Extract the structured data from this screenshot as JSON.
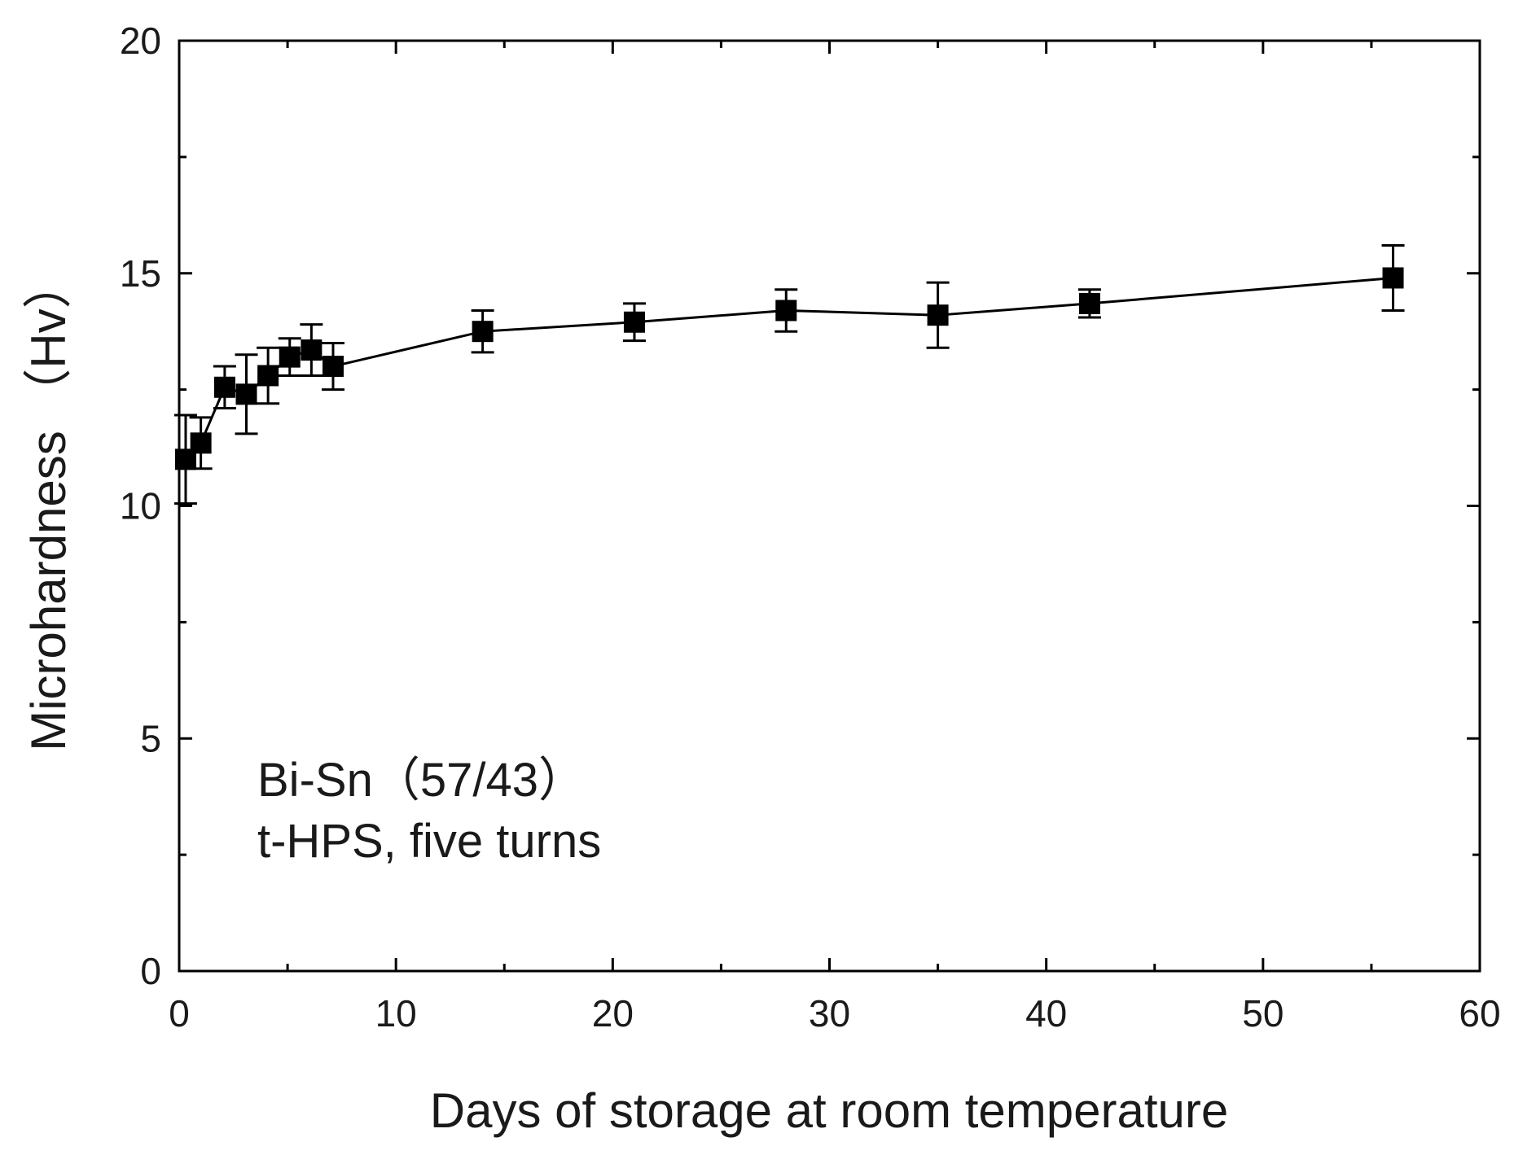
{
  "chart_data": {
    "type": "scatter",
    "xlabel": "Days of storage at room temperature",
    "ylabel": "Microhardness （Hv）",
    "xlim": [
      0,
      60
    ],
    "ylim": [
      0,
      20
    ],
    "x_ticks": [
      0,
      10,
      20,
      30,
      40,
      50,
      60
    ],
    "y_ticks": [
      0,
      5,
      10,
      15,
      20
    ],
    "x_tick_labels": [
      "0",
      "10",
      "20",
      "30",
      "40",
      "50",
      "60"
    ],
    "y_tick_labels": [
      "0",
      "5",
      "10",
      "15",
      "20"
    ],
    "grid": false,
    "lines_connect_points": true,
    "marker": "filled-square",
    "annotations": [
      "Bi-Sn（57/43）",
      "t-HPS, five turns"
    ],
    "series": [
      {
        "points": [
          {
            "x": 0.3,
            "y": 11.0,
            "err": 0.95
          },
          {
            "x": 1.0,
            "y": 11.35,
            "err": 0.55
          },
          {
            "x": 2.1,
            "y": 12.55,
            "err": 0.45
          },
          {
            "x": 3.1,
            "y": 12.4,
            "err": 0.85
          },
          {
            "x": 4.1,
            "y": 12.8,
            "err": 0.6
          },
          {
            "x": 5.1,
            "y": 13.2,
            "err": 0.4
          },
          {
            "x": 6.1,
            "y": 13.35,
            "err": 0.55
          },
          {
            "x": 7.1,
            "y": 13.0,
            "err": 0.5
          },
          {
            "x": 14.0,
            "y": 13.75,
            "err": 0.45
          },
          {
            "x": 21.0,
            "y": 13.95,
            "err": 0.4
          },
          {
            "x": 28.0,
            "y": 14.2,
            "err": 0.45
          },
          {
            "x": 35.0,
            "y": 14.1,
            "err": 0.7
          },
          {
            "x": 42.0,
            "y": 14.35,
            "err": 0.3
          },
          {
            "x": 56.0,
            "y": 14.9,
            "err": 0.7
          }
        ]
      }
    ]
  }
}
